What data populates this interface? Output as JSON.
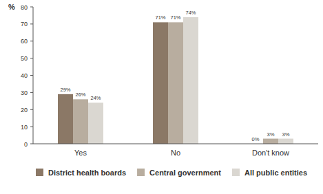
{
  "chart_data": {
    "type": "bar",
    "y_label": "%",
    "categories": [
      "Yes",
      "No",
      "Don't know"
    ],
    "series": [
      {
        "name": "District health boards",
        "color": "#8b7866",
        "values": [
          29,
          71,
          0
        ],
        "value_labels": [
          "29%",
          "71%",
          "0%"
        ]
      },
      {
        "name": "Central government",
        "color": "#b8ad9f",
        "values": [
          26,
          71,
          3
        ],
        "value_labels": [
          "26%",
          "71%",
          "3%"
        ]
      },
      {
        "name": "All public entities",
        "color": "#dad7d1",
        "values": [
          24,
          74,
          3
        ],
        "value_labels": [
          "24%",
          "74%",
          "3%"
        ]
      }
    ],
    "ylim": [
      0,
      80
    ],
    "yticks": [
      0,
      10,
      20,
      30,
      40,
      50,
      60,
      70,
      80
    ],
    "grid": false,
    "data_labels": true,
    "legend": "bottom"
  }
}
